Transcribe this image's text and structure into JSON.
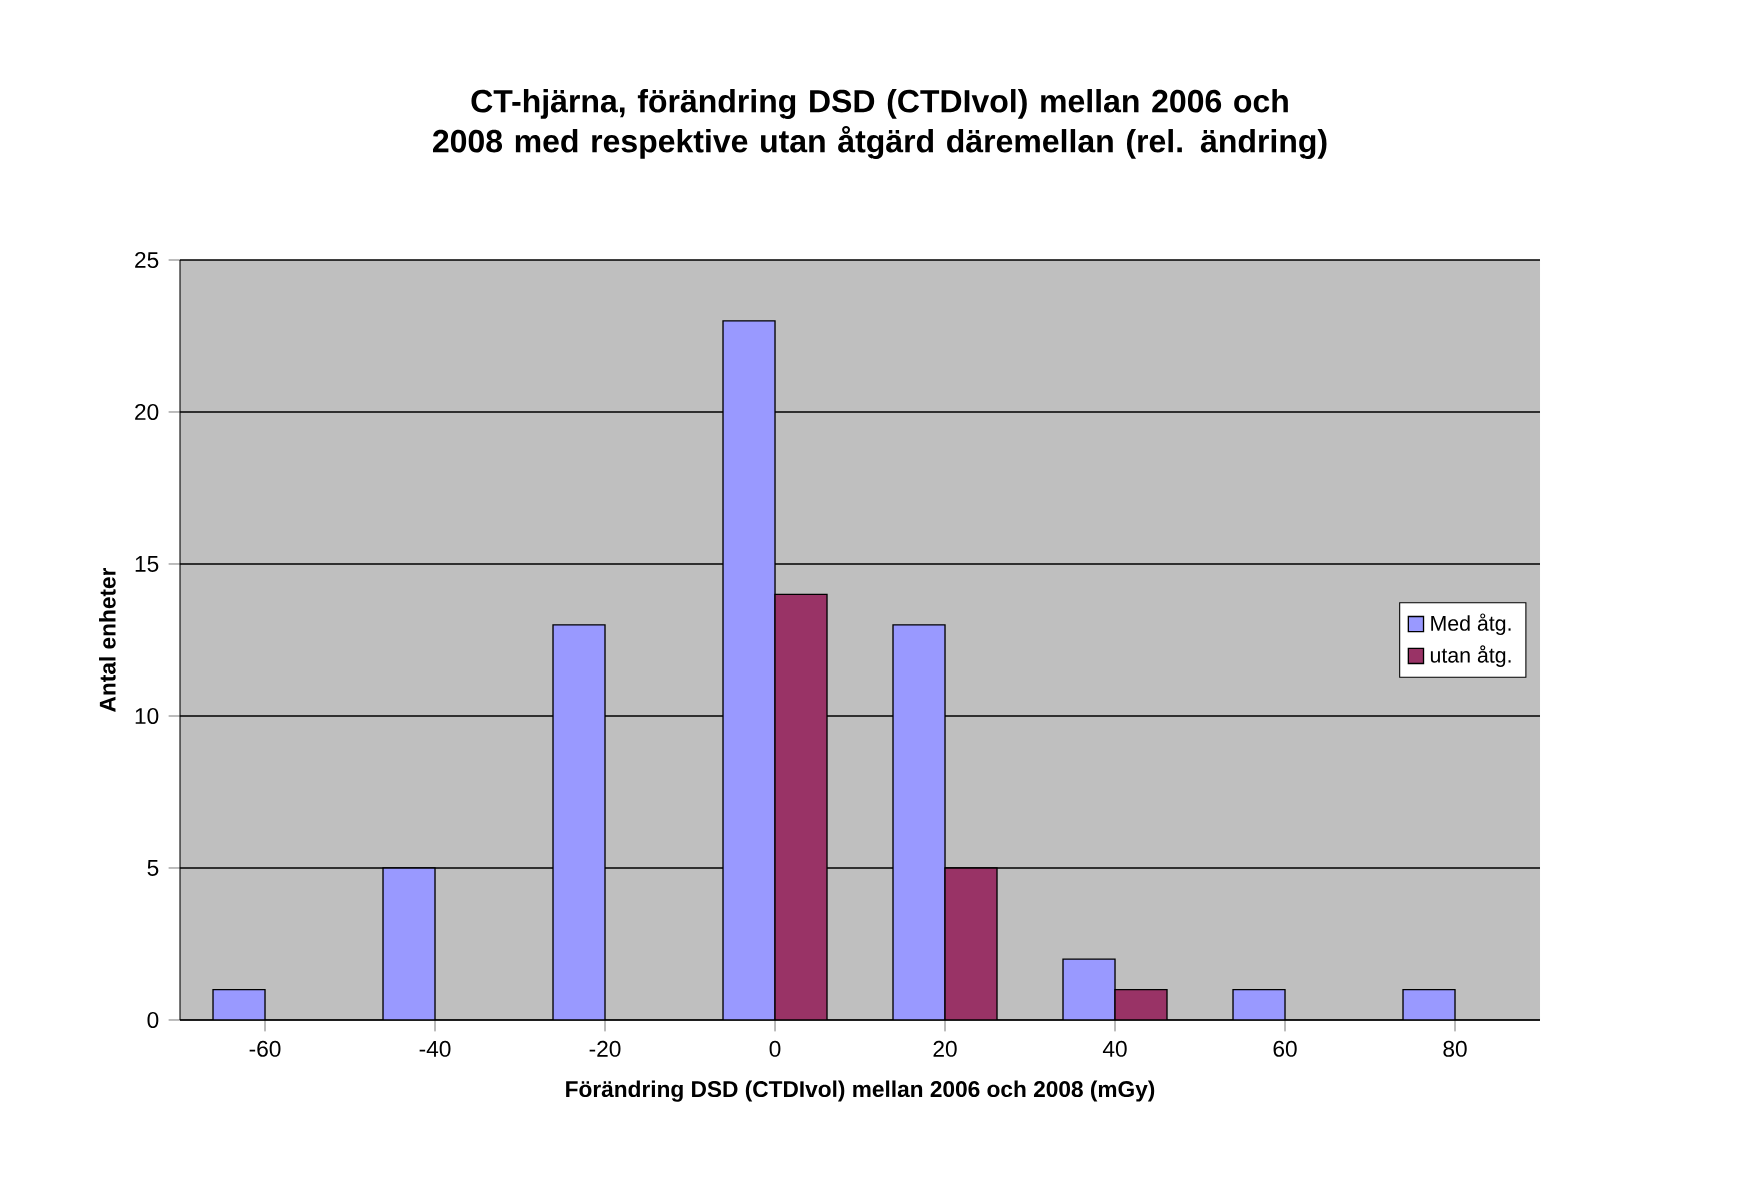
{
  "chart_data": {
    "type": "bar",
    "title": "CT-hjärna, förändring DSD (CTDIvol) mellan 2006 och 2008 med respektive utan åtgärd däremellan (rel. ändring)",
    "xlabel": "Förändring DSD (CTDIvol) mellan 2006 och 2008 (mGy)",
    "ylabel": "Antal enheter",
    "categories": [
      "-60",
      "-40",
      "-20",
      "0",
      "20",
      "40",
      "60",
      "80"
    ],
    "series": [
      {
        "name": "Med åtg.",
        "color": "#9999ff",
        "values": [
          1,
          5,
          13,
          23,
          13,
          2,
          1,
          1
        ]
      },
      {
        "name": "utan åtg.",
        "color": "#993366",
        "values": [
          null,
          null,
          null,
          14,
          5,
          1,
          null,
          null
        ]
      }
    ],
    "ylim": [
      0,
      25
    ],
    "yticks": [
      0,
      5,
      10,
      15,
      20,
      25
    ],
    "grid": "y",
    "legend": "right"
  }
}
